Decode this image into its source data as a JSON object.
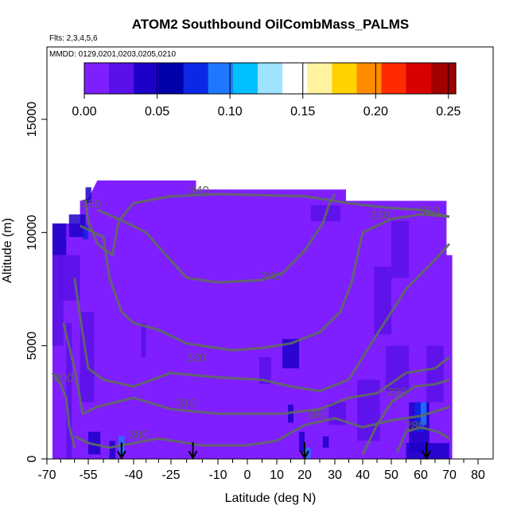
{
  "chart_data": {
    "type": "heatmap",
    "title": "ATOM2 Southbound OilCombMass_PALMS",
    "subtitle_flights": "Flts: 2,3,4,5,6",
    "subtitle_dates": "MMDD: 0129,0201,0203,0205,0210",
    "xlabel": "Latitude (deg N)",
    "ylabel": "Altitude (m)",
    "xlim": [
      -70,
      80
    ],
    "ylim": [
      0,
      17500
    ],
    "x_ticks": [
      -70,
      -55,
      -40,
      -25,
      -10,
      0,
      10,
      20,
      30,
      40,
      50,
      60,
      70,
      80
    ],
    "y_ticks": [
      0,
      5000,
      10000,
      15000
    ],
    "colorbar": {
      "range": [
        0,
        0.255
      ],
      "ticks": [
        0.0,
        0.05,
        0.1,
        0.15,
        0.2,
        0.25
      ],
      "tick_labels": [
        "0.00",
        "0.05",
        "0.10",
        "0.15",
        "0.20",
        "0.25"
      ],
      "colors": [
        "#7f1fff",
        "#5a10e8",
        "#1c00c8",
        "#0000a8",
        "#0a28e6",
        "#1e78ff",
        "#00bfff",
        "#9ee3ff",
        "#ffffff",
        "#fff3a0",
        "#ffd200",
        "#ff8c00",
        "#ff2a00",
        "#d80000",
        "#a00000"
      ]
    },
    "background_color": "#7f1fff",
    "data_envelope": [
      {
        "lat": -68,
        "alt": 0
      },
      {
        "lat": -68,
        "alt": 10400
      },
      {
        "lat": -58,
        "alt": 10400
      },
      {
        "lat": -58,
        "alt": 11400
      },
      {
        "lat": -55,
        "alt": 11500
      },
      {
        "lat": -52,
        "alt": 12300
      },
      {
        "lat": -17,
        "alt": 12300
      },
      {
        "lat": -17,
        "alt": 11900
      },
      {
        "lat": 34,
        "alt": 11900
      },
      {
        "lat": 34,
        "alt": 11400
      },
      {
        "lat": 69,
        "alt": 11400
      },
      {
        "lat": 69,
        "alt": 9000
      },
      {
        "lat": 71,
        "alt": 9000
      },
      {
        "lat": 71,
        "alt": 0
      }
    ],
    "patches": [
      {
        "lat": [
          -68,
          -63
        ],
        "alt": [
          9000,
          10400
        ],
        "value": 0.04
      },
      {
        "lat": [
          -66,
          -58
        ],
        "alt": [
          7000,
          9000
        ],
        "value": 0.03
      },
      {
        "lat": [
          -68,
          -64
        ],
        "alt": [
          5000,
          9000
        ],
        "value": 0.025
      },
      {
        "lat": [
          -62,
          -56
        ],
        "alt": [
          9800,
          10800
        ],
        "value": 0.045
      },
      {
        "lat": [
          -57,
          -55
        ],
        "alt": [
          9700,
          10300
        ],
        "value": 0.08
      },
      {
        "lat": [
          -56,
          -54
        ],
        "alt": [
          11300,
          12000
        ],
        "value": 0.04
      },
      {
        "lat": [
          -58,
          -53
        ],
        "alt": [
          2500,
          6500
        ],
        "value": 0.03
      },
      {
        "lat": [
          -55,
          -51
        ],
        "alt": [
          200,
          1200
        ],
        "value": 0.04
      },
      {
        "lat": [
          -48,
          -46
        ],
        "alt": [
          0,
          800
        ],
        "value": 0.05
      },
      {
        "lat": [
          -45,
          -43
        ],
        "alt": [
          200,
          1000
        ],
        "value": 0.09
      },
      {
        "lat": [
          -37,
          -35
        ],
        "alt": [
          4500,
          6000
        ],
        "value": 0.025
      },
      {
        "lat": [
          -63,
          -61
        ],
        "alt": [
          0,
          6000
        ],
        "value": 0.03
      },
      {
        "lat": [
          4,
          8
        ],
        "alt": [
          3300,
          4500
        ],
        "value": 0.03
      },
      {
        "lat": [
          12,
          18
        ],
        "alt": [
          4000,
          5300
        ],
        "value": 0.035
      },
      {
        "lat": [
          14,
          16
        ],
        "alt": [
          1600,
          2400
        ],
        "value": 0.045
      },
      {
        "lat": [
          18,
          20
        ],
        "alt": [
          300,
          1200
        ],
        "value": 0.05
      },
      {
        "lat": [
          20,
          22
        ],
        "alt": [
          0,
          500
        ],
        "value": 0.09
      },
      {
        "lat": [
          26,
          28
        ],
        "alt": [
          500,
          1000
        ],
        "value": 0.04
      },
      {
        "lat": [
          28,
          34
        ],
        "alt": [
          1500,
          2500
        ],
        "value": 0.03
      },
      {
        "lat": [
          22,
          32
        ],
        "alt": [
          10500,
          11200
        ],
        "value": 0.025
      },
      {
        "lat": [
          38,
          46
        ],
        "alt": [
          800,
          3500
        ],
        "value": 0.03
      },
      {
        "lat": [
          44,
          50
        ],
        "alt": [
          5500,
          8500
        ],
        "value": 0.025
      },
      {
        "lat": [
          50,
          56
        ],
        "alt": [
          8000,
          10500
        ],
        "value": 0.03
      },
      {
        "lat": [
          56,
          63
        ],
        "alt": [
          300,
          2500
        ],
        "value": 0.045
      },
      {
        "lat": [
          58,
          61
        ],
        "alt": [
          1200,
          2500
        ],
        "value": 0.07
      },
      {
        "lat": [
          60,
          62
        ],
        "alt": [
          1500,
          2500
        ],
        "value": 0.09
      },
      {
        "lat": [
          55,
          70
        ],
        "alt": [
          0,
          700
        ],
        "value": 0.04
      },
      {
        "lat": [
          62,
          68
        ],
        "alt": [
          2500,
          5000
        ],
        "value": 0.025
      },
      {
        "lat": [
          48,
          56
        ],
        "alt": [
          3000,
          5000
        ],
        "value": 0.03
      }
    ],
    "contours": [
      {
        "label": "350",
        "label_at": [
          -54,
          11100
        ],
        "label_at_2": [
          63,
          10800
        ],
        "points": [
          [
            -56,
            11400
          ],
          [
            -55,
            10500
          ],
          [
            -52,
            9500
          ],
          [
            -47,
            9000
          ],
          [
            -45,
            10500
          ],
          [
            -40,
            11300
          ],
          [
            -25,
            11600
          ],
          [
            -10,
            11700
          ],
          [
            5,
            11650
          ],
          [
            20,
            11600
          ],
          [
            35,
            11300
          ],
          [
            48,
            11100
          ],
          [
            60,
            11000
          ],
          [
            70,
            10700
          ]
        ]
      },
      {
        "label": "330",
        "label_at": [
          46,
          10600
        ],
        "points": [
          [
            -58,
            10300
          ],
          [
            -50,
            9800
          ],
          [
            -48,
            8000
          ],
          [
            -44,
            6500
          ],
          [
            -40,
            6000
          ],
          [
            -30,
            5700
          ],
          [
            -20,
            5100
          ],
          [
            -5,
            4800
          ],
          [
            5,
            4900
          ],
          [
            15,
            5100
          ],
          [
            25,
            5600
          ],
          [
            32,
            6500
          ],
          [
            36,
            7800
          ],
          [
            40,
            10000
          ],
          [
            50,
            10600
          ],
          [
            60,
            10800
          ],
          [
            70,
            10700
          ]
        ]
      },
      {
        "label": "340",
        "label_at": [
          -16,
          11700
        ],
        "points": [
          [
            -52,
            11000
          ],
          [
            -45,
            10600
          ],
          [
            -35,
            10000
          ],
          [
            -27,
            9000
          ],
          [
            -20,
            8000
          ],
          [
            -10,
            7800
          ],
          [
            5,
            7900
          ],
          [
            12,
            8200
          ],
          [
            20,
            9200
          ],
          [
            26,
            10400
          ],
          [
            28,
            11200
          ],
          [
            30,
            11700
          ]
        ]
      },
      {
        "label": "340",
        "label_at": [
          8,
          7900
        ],
        "label_at_2": null,
        "points": []
      },
      {
        "label": "320",
        "label_at": [
          -17,
          4300
        ],
        "points": [
          [
            -60,
            8000
          ],
          [
            -57,
            5500
          ],
          [
            -55,
            4000
          ],
          [
            -50,
            3500
          ],
          [
            -40,
            3200
          ],
          [
            -25,
            3800
          ],
          [
            -10,
            3600
          ],
          [
            5,
            3500
          ],
          [
            15,
            3200
          ],
          [
            25,
            3000
          ],
          [
            35,
            3500
          ],
          [
            45,
            5500
          ],
          [
            55,
            7500
          ],
          [
            65,
            8800
          ],
          [
            70,
            9500
          ]
        ]
      },
      {
        "label": "310",
        "label_at": [
          -20,
          2300
        ],
        "points": [
          [
            -64,
            6000
          ],
          [
            -60,
            4000
          ],
          [
            -57,
            2000
          ],
          [
            -52,
            2300
          ],
          [
            -40,
            2700
          ],
          [
            -25,
            2200
          ],
          [
            -10,
            2000
          ],
          [
            0,
            2000
          ],
          [
            12,
            2000
          ],
          [
            25,
            2200
          ],
          [
            35,
            2700
          ],
          [
            45,
            2900
          ],
          [
            55,
            3800
          ],
          [
            65,
            4000
          ],
          [
            70,
            4500
          ]
        ]
      },
      {
        "label": "300",
        "label_at": [
          -38,
          900
        ],
        "points": [
          [
            -60,
            1000
          ],
          [
            -55,
            700
          ],
          [
            -48,
            500
          ],
          [
            -40,
            700
          ],
          [
            -30,
            900
          ],
          [
            -15,
            600
          ],
          [
            0,
            600
          ],
          [
            10,
            800
          ],
          [
            20,
            1500
          ],
          [
            30,
            1800
          ],
          [
            40,
            1400
          ],
          [
            50,
            1700
          ],
          [
            60,
            1900
          ],
          [
            70,
            2300
          ]
        ]
      },
      {
        "label": "300",
        "label_at": [
          24,
          1800
        ],
        "points": []
      },
      {
        "label": "290",
        "label_at": [
          52,
          2800
        ],
        "points": [
          [
            40,
            200
          ],
          [
            45,
            1500
          ],
          [
            50,
            2500
          ],
          [
            58,
            3200
          ],
          [
            65,
            3300
          ],
          [
            70,
            3500
          ]
        ]
      },
      {
        "label": "280",
        "label_at": [
          58,
          1300
        ],
        "points": [
          [
            52,
            300
          ],
          [
            55,
            1200
          ],
          [
            60,
            1400
          ],
          [
            66,
            1200
          ],
          [
            70,
            900
          ]
        ]
      },
      {
        "label": "300",
        "label_at": [
          -64,
          3400
        ],
        "points": [
          [
            -68,
            3800
          ],
          [
            -65,
            3300
          ],
          [
            -63,
            2700
          ],
          [
            -62,
            1500
          ],
          [
            -60,
            500
          ]
        ]
      }
    ],
    "arrows_lat": [
      -44,
      -18,
      20,
      62
    ]
  }
}
